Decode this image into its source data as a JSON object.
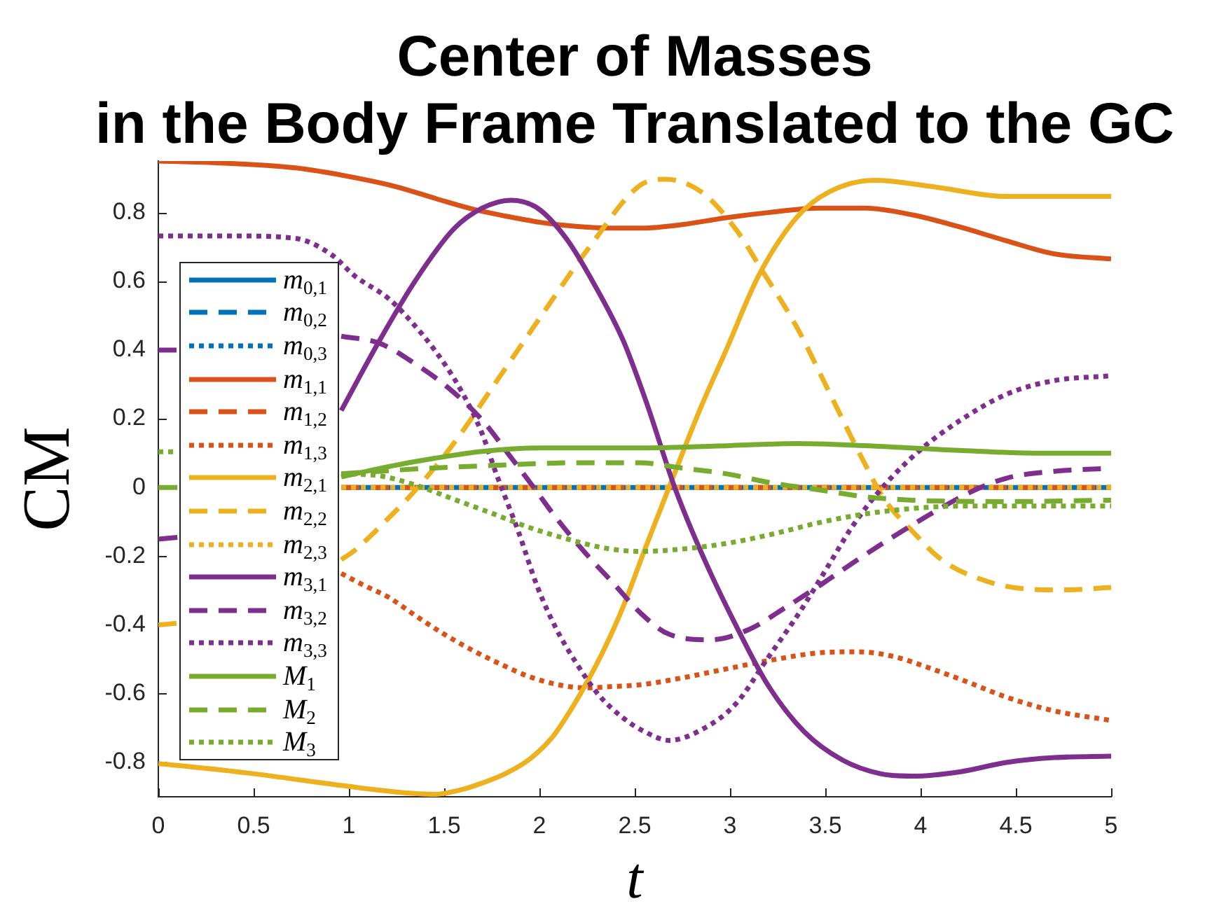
{
  "chart_data": {
    "type": "line",
    "title": "Center of Masses\nin the Body Frame Translated to the GC",
    "xlabel": "t",
    "ylabel": "CM",
    "xlim": [
      0,
      5
    ],
    "ylim": [
      -0.9,
      0.95
    ],
    "xticks": [
      0,
      0.5,
      1,
      1.5,
      2,
      2.5,
      3,
      3.5,
      4,
      4.5,
      5
    ],
    "yticks": [
      -0.8,
      -0.6,
      -0.4,
      -0.2,
      0,
      0.2,
      0.4,
      0.6,
      0.8
    ],
    "legend": "left",
    "series": [
      {
        "name": "m$_{0,1}$",
        "color": "#0072bd",
        "line_style": "solid",
        "x": [
          0.96,
          5
        ],
        "values": [
          0,
          0
        ]
      },
      {
        "name": "m$_{0,2}$",
        "color": "#0072bd",
        "line_style": "dashed"
      },
      {
        "name": "m$_{0,3}$",
        "color": "#0072bd",
        "line_style": "dotted"
      },
      {
        "name": "m$_{1,1}$",
        "color": "#d95319",
        "line_style": "solid",
        "x": [
          0,
          0.3,
          0.72,
          1,
          1.25,
          1.46,
          1.65,
          1.82,
          2,
          2.19,
          2.35,
          2.54,
          2.75,
          2.98,
          3.2,
          3.47,
          3.71,
          3.96,
          4.2,
          4.45,
          4.7,
          5
        ],
        "values": [
          0.95,
          0.945,
          0.93,
          0.905,
          0.875,
          0.84,
          0.81,
          0.79,
          0.772,
          0.76,
          0.755,
          0.755,
          0.765,
          0.785,
          0.8,
          0.813,
          0.813,
          0.793,
          0.759,
          0.718,
          0.68,
          0.665
        ]
      },
      {
        "name": "m$_{1,2}$",
        "color": "#d95319",
        "line_style": "dashed",
        "x": [
          0.96,
          5
        ],
        "values": [
          0,
          0
        ]
      },
      {
        "name": "m$_{1,3}$",
        "color": "#d95319",
        "line_style": "dotted",
        "x": [
          0.96,
          1.08,
          1.21,
          1.35,
          1.5,
          1.65,
          1.8,
          1.94,
          2.09,
          2.24,
          2.39,
          2.53,
          2.73,
          2.98,
          3.22,
          3.47,
          3.67,
          3.86,
          4.06,
          4.26,
          4.45,
          4.7,
          5
        ],
        "values": [
          -0.25,
          -0.285,
          -0.32,
          -0.373,
          -0.427,
          -0.474,
          -0.515,
          -0.549,
          -0.573,
          -0.583,
          -0.579,
          -0.574,
          -0.556,
          -0.528,
          -0.502,
          -0.481,
          -0.478,
          -0.492,
          -0.528,
          -0.569,
          -0.61,
          -0.65,
          -0.678
        ]
      },
      {
        "name": "m$_{2,1}$",
        "color": "#edb120",
        "line_style": "solid",
        "x": [
          0,
          0.47,
          0.96,
          1.15,
          1.33,
          1.45,
          1.58,
          1.7,
          1.82,
          1.95,
          2.07,
          2.15,
          2.24,
          2.34,
          2.44,
          2.56,
          2.68,
          2.85,
          2.98,
          3.15,
          3.35,
          3.52,
          3.76,
          4.08,
          4.45,
          5
        ],
        "values": [
          -0.803,
          -0.831,
          -0.867,
          -0.88,
          -0.89,
          -0.893,
          -0.881,
          -0.86,
          -0.833,
          -0.79,
          -0.725,
          -0.66,
          -0.576,
          -0.47,
          -0.346,
          -0.17,
          0,
          0.237,
          0.4,
          0.616,
          0.786,
          0.86,
          0.894,
          0.874,
          0.847,
          0.847
        ]
      },
      {
        "name": "m$_{2,2}$",
        "color": "#edb120",
        "line_style": "dashed",
        "x": [
          0,
          0.1,
          0.5,
          0.96,
          1.03,
          1.21,
          1.35,
          1.55,
          1.77,
          2.02,
          2.26,
          2.53,
          2.66,
          2.85,
          3.03,
          3.17,
          3.35,
          3.52,
          3.69,
          3.81,
          3.96,
          4.11,
          4.3,
          4.53,
          4.75,
          5
        ],
        "values": [
          -0.4,
          -0.395,
          null,
          -0.21,
          -0.183,
          -0.088,
          -0.007,
          0.128,
          0.305,
          0.508,
          0.698,
          0.88,
          0.897,
          0.86,
          0.752,
          0.63,
          0.467,
          0.278,
          0.088,
          -0.034,
          -0.129,
          -0.21,
          -0.264,
          -0.294,
          -0.298,
          -0.291
        ]
      },
      {
        "name": "m$_{2,3}$",
        "color": "#edb120",
        "line_style": "dotted",
        "x": [
          0.96,
          5
        ],
        "values": [
          0,
          0
        ]
      },
      {
        "name": "m$_{3,1}$",
        "color": "#7e2f8e",
        "line_style": "solid",
        "x": [
          0,
          0.1,
          0.5,
          0.96,
          1.16,
          1.35,
          1.55,
          1.7,
          1.85,
          1.99,
          2.14,
          2.29,
          2.44,
          2.56,
          2.71,
          2.85,
          3.03,
          3.2,
          3.39,
          3.59,
          3.79,
          3.96,
          4.21,
          4.45,
          4.7,
          5
        ],
        "values": [
          -0.15,
          -0.145,
          null,
          0.224,
          0.427,
          0.603,
          0.752,
          0.813,
          0.836,
          0.813,
          0.725,
          0.589,
          0.427,
          0.25,
          0,
          -0.19,
          -0.4,
          -0.576,
          -0.711,
          -0.793,
          -0.833,
          -0.84,
          -0.827,
          -0.8,
          -0.786,
          -0.782
        ]
      },
      {
        "name": "m$_{3,2}$",
        "color": "#7e2f8e",
        "line_style": "dashed",
        "x": [
          0,
          0.1,
          0.5,
          0.96,
          1.16,
          1.35,
          1.52,
          1.7,
          1.85,
          1.97,
          2.09,
          2.24,
          2.39,
          2.53,
          2.68,
          2.9,
          3.1,
          3.3,
          3.49,
          3.67,
          3.86,
          4.06,
          4.26,
          4.45,
          4.7,
          5
        ],
        "values": [
          0.4,
          0.4,
          null,
          0.44,
          0.42,
          0.359,
          0.291,
          0.196,
          0.088,
          0,
          -0.09,
          -0.19,
          -0.28,
          -0.365,
          -0.427,
          -0.443,
          -0.413,
          -0.346,
          -0.278,
          -0.21,
          -0.142,
          -0.075,
          -0.014,
          0.027,
          0.047,
          0.056
        ]
      },
      {
        "name": "m$_{3,3}$",
        "color": "#7e2f8e",
        "line_style": "dotted",
        "x": [
          0,
          0.4,
          0.72,
          0.91,
          1.03,
          1.21,
          1.33,
          1.45,
          1.58,
          1.7,
          1.77,
          1.89,
          1.99,
          2.09,
          2.19,
          2.31,
          2.44,
          2.55,
          2.68,
          2.85,
          3.03,
          3.2,
          3.37,
          3.52,
          3.64,
          3.8,
          4,
          4.21,
          4.45,
          4.7,
          5
        ],
        "values": [
          0.732,
          0.732,
          0.725,
          0.677,
          0.616,
          0.549,
          0.481,
          0.4,
          0.291,
          0.156,
          0.045,
          -0.129,
          -0.29,
          -0.413,
          -0.508,
          -0.603,
          -0.671,
          -0.71,
          -0.736,
          -0.705,
          -0.63,
          -0.495,
          -0.359,
          -0.224,
          -0.115,
          0,
          0.11,
          0.196,
          0.271,
          0.311,
          0.325
        ]
      },
      {
        "name": "M$_{1}$",
        "color": "#77ac30",
        "line_style": "solid",
        "x": [
          0,
          0.1,
          0.5,
          0.96,
          1.2,
          1.45,
          1.7,
          2,
          2.5,
          3,
          3.35,
          3.7,
          4.2,
          4.6,
          5
        ],
        "values": [
          0,
          0,
          null,
          0.031,
          0.06,
          0.085,
          0.105,
          0.115,
          0.115,
          0.122,
          0.128,
          0.122,
          0.108,
          0.1,
          0.1
        ]
      },
      {
        "name": "M$_{2}$",
        "color": "#77ac30",
        "line_style": "dashed",
        "x": [
          0.96,
          1.1,
          1.35,
          1.7,
          2.2,
          2.53,
          2.73,
          2.98,
          3.22,
          3.47,
          3.71,
          3.96,
          4.45,
          5
        ],
        "values": [
          0.04,
          0.045,
          0.054,
          0.063,
          0.072,
          0.072,
          0.058,
          0.04,
          0.013,
          -0.007,
          -0.027,
          -0.037,
          -0.041,
          -0.037
        ]
      },
      {
        "name": "M$_{3}$",
        "color": "#77ac30",
        "line_style": "dotted",
        "x": [
          0,
          0.1,
          0.5,
          0.96,
          1.16,
          1.35,
          1.55,
          1.75,
          1.94,
          2.14,
          2.34,
          2.53,
          2.73,
          2.98,
          3.22,
          3.47,
          3.71,
          3.96,
          4.21,
          4.6,
          5
        ],
        "values": [
          0.104,
          0.104,
          null,
          0.04,
          0.034,
          0.007,
          -0.034,
          -0.075,
          -0.115,
          -0.149,
          -0.176,
          -0.186,
          -0.18,
          -0.163,
          -0.136,
          -0.102,
          -0.077,
          -0.061,
          -0.054,
          -0.054,
          -0.054
        ]
      }
    ]
  }
}
